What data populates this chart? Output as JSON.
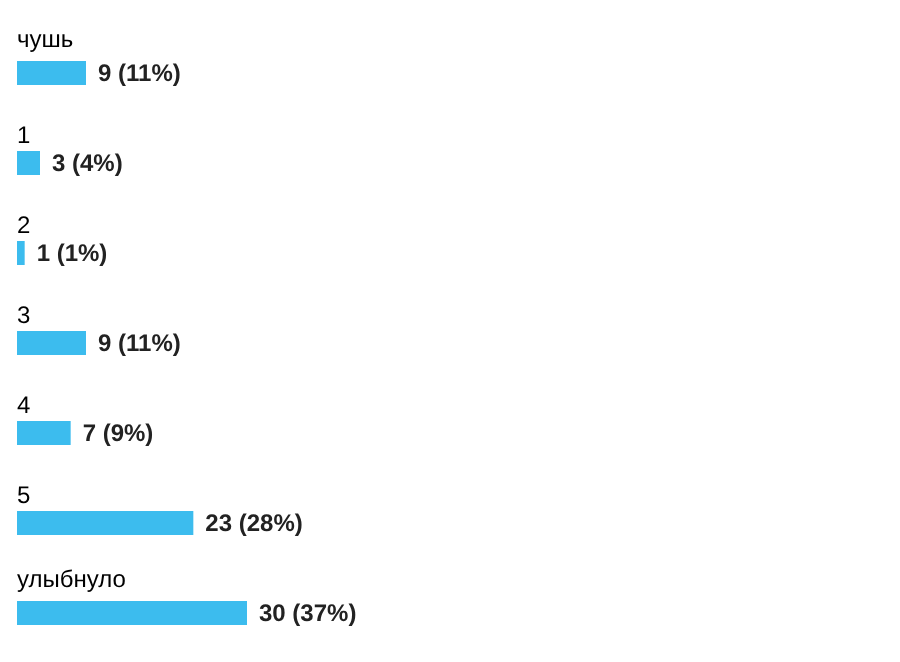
{
  "chart_data": {
    "type": "bar",
    "orientation": "horizontal",
    "categories": [
      "чушь",
      "1",
      "2",
      "3",
      "4",
      "5",
      "улыбнуло"
    ],
    "values": [
      9,
      3,
      1,
      9,
      7,
      23,
      30
    ],
    "color": "#3cbcee",
    "value_labels": [
      "9 (11%)",
      "3 (4%)",
      "1 (1%)",
      "9 (11%)",
      "7 (9%)",
      "23 (28%)",
      "30 (37%)"
    ],
    "grid": false
  }
}
